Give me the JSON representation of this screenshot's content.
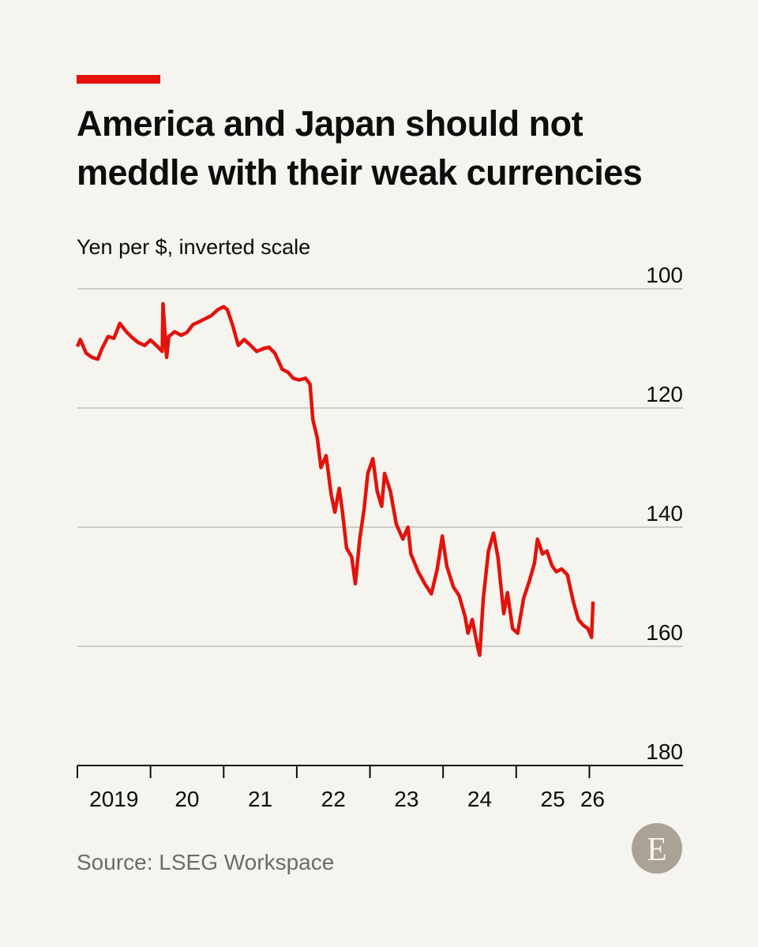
{
  "chart_data": {
    "type": "line",
    "title": "America and Japan should not meddle with their weak currencies",
    "subtitle": "Yen per $, inverted scale",
    "source": "Source: LSEG Workspace",
    "logo": "E",
    "invert_y": true,
    "grid": true,
    "x": [
      2019.0,
      2019.04,
      2019.12,
      2019.2,
      2019.28,
      2019.33,
      2019.42,
      2019.5,
      2019.58,
      2019.67,
      2019.75,
      2019.83,
      2019.92,
      2020.0,
      2020.08,
      2020.16,
      2020.17,
      2020.22,
      2020.25,
      2020.33,
      2020.42,
      2020.5,
      2020.58,
      2020.67,
      2020.75,
      2020.83,
      2020.92,
      2021.0,
      2021.05,
      2021.12,
      2021.2,
      2021.28,
      2021.37,
      2021.45,
      2021.55,
      2021.62,
      2021.7,
      2021.8,
      2021.88,
      2021.95,
      2022.03,
      2022.12,
      2022.18,
      2022.22,
      2022.28,
      2022.33,
      2022.4,
      2022.47,
      2022.52,
      2022.58,
      2022.62,
      2022.68,
      2022.75,
      2022.8,
      2022.86,
      2022.92,
      2022.97,
      2023.04,
      2023.1,
      2023.16,
      2023.2,
      2023.28,
      2023.36,
      2023.45,
      2023.52,
      2023.56,
      2023.66,
      2023.75,
      2023.84,
      2023.92,
      2023.99,
      2024.05,
      2024.14,
      2024.22,
      2024.3,
      2024.34,
      2024.4,
      2024.47,
      2024.5,
      2024.55,
      2024.62,
      2024.69,
      2024.75,
      2024.83,
      2024.88,
      2024.95,
      2025.02,
      2025.1,
      2025.18,
      2025.25,
      2025.29,
      2025.36,
      2025.42,
      2025.49,
      2025.55,
      2025.62,
      2025.7,
      2025.78,
      2025.85,
      2025.92,
      2025.98,
      2026.03,
      2026.05
    ],
    "series": [
      {
        "name": "Yen per $",
        "color": "#e3120b",
        "values": [
          109.7,
          108.5,
          110.8,
          111.5,
          111.8,
          110.2,
          108.0,
          108.3,
          105.8,
          107.2,
          108.2,
          109.0,
          109.5,
          108.6,
          109.5,
          110.5,
          102.5,
          111.5,
          108.0,
          107.2,
          107.8,
          107.3,
          106.0,
          105.5,
          105.0,
          104.5,
          103.5,
          103.0,
          103.5,
          106.0,
          109.5,
          108.5,
          109.5,
          110.5,
          110.0,
          109.8,
          110.8,
          113.5,
          114.0,
          115.0,
          115.3,
          115.0,
          116.0,
          122.0,
          125.0,
          130.0,
          128.0,
          134.5,
          137.5,
          133.5,
          137.0,
          143.5,
          145.0,
          149.5,
          142.0,
          137.0,
          131.0,
          128.5,
          134.0,
          136.5,
          131.0,
          134.0,
          139.5,
          142.0,
          140.0,
          144.5,
          147.5,
          149.5,
          151.2,
          147.0,
          141.5,
          146.5,
          150.0,
          151.5,
          155.0,
          157.8,
          155.5,
          160.0,
          161.5,
          152.0,
          144.0,
          141.0,
          145.0,
          154.5,
          151.0,
          157.0,
          157.8,
          152.0,
          149.0,
          146.0,
          142.0,
          144.5,
          144.0,
          146.5,
          147.5,
          147.0,
          148.0,
          152.5,
          155.5,
          156.5,
          157.0,
          158.5,
          152.5
        ]
      }
    ],
    "xlim": [
      2019,
      2027.28
    ],
    "xticks": [
      {
        "value": 2019,
        "label": "2019"
      },
      {
        "value": 2020,
        "label": "20"
      },
      {
        "value": 2021,
        "label": "21"
      },
      {
        "value": 2022,
        "label": "22"
      },
      {
        "value": 2023,
        "label": "23"
      },
      {
        "value": 2024,
        "label": "24"
      },
      {
        "value": 2025,
        "label": "25"
      },
      {
        "value": 2026,
        "label": "26"
      }
    ],
    "ylim": [
      100,
      180
    ],
    "yticks": [
      100,
      120,
      140,
      160,
      180
    ]
  }
}
